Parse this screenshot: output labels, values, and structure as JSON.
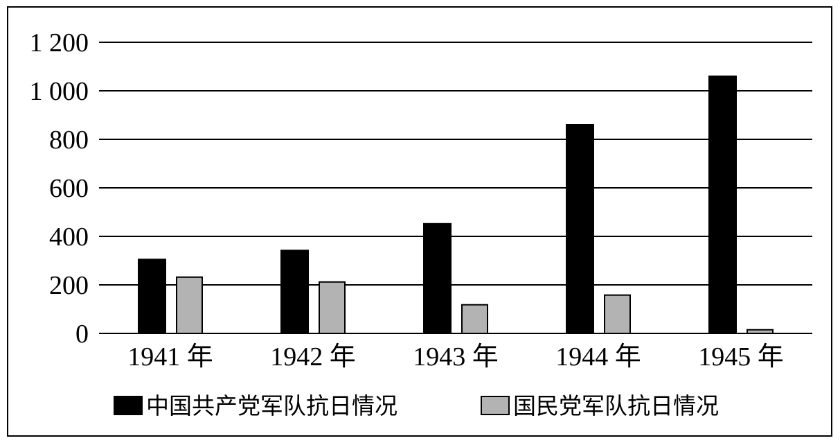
{
  "chart_data": {
    "type": "bar",
    "categories": [
      "1941 年",
      "1942 年",
      "1943 年",
      "1944 年",
      "1945 年"
    ],
    "series": [
      {
        "name": "中国共产党军队抗日情况",
        "values": [
          305,
          342,
          452,
          860,
          1060
        ],
        "color": "#000000"
      },
      {
        "name": "国民党军队抗日情况",
        "values": [
          232,
          212,
          118,
          158,
          15
        ],
        "color": "#b3b3b3"
      }
    ],
    "yticks": [
      "0",
      "200",
      "400",
      "600",
      "800",
      "1 000",
      "1 200"
    ],
    "ylim": [
      0,
      1200
    ],
    "grid": true,
    "legend_position": "bottom",
    "title": "",
    "xlabel": "",
    "ylabel": ""
  }
}
